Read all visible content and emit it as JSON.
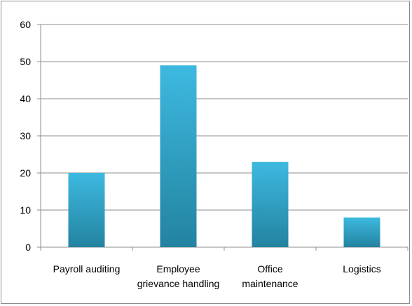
{
  "chart_data": {
    "type": "bar",
    "categories": [
      [
        "Payroll auditing"
      ],
      [
        "Employee",
        "grievance handling"
      ],
      [
        "Office",
        "maintenance"
      ],
      [
        "Logistics"
      ]
    ],
    "values": [
      20,
      49,
      23,
      8
    ],
    "title": "",
    "xlabel": "",
    "ylabel": "",
    "ylim": [
      0,
      60
    ],
    "yticks": [
      0,
      10,
      20,
      30,
      40,
      50,
      60
    ],
    "grid": true,
    "legend": "none",
    "colors": {
      "bar_top": "#3db9e0",
      "bar_bottom": "#2383a0",
      "grid": "#8c8c8c",
      "axis": "#8c8c8c"
    }
  }
}
